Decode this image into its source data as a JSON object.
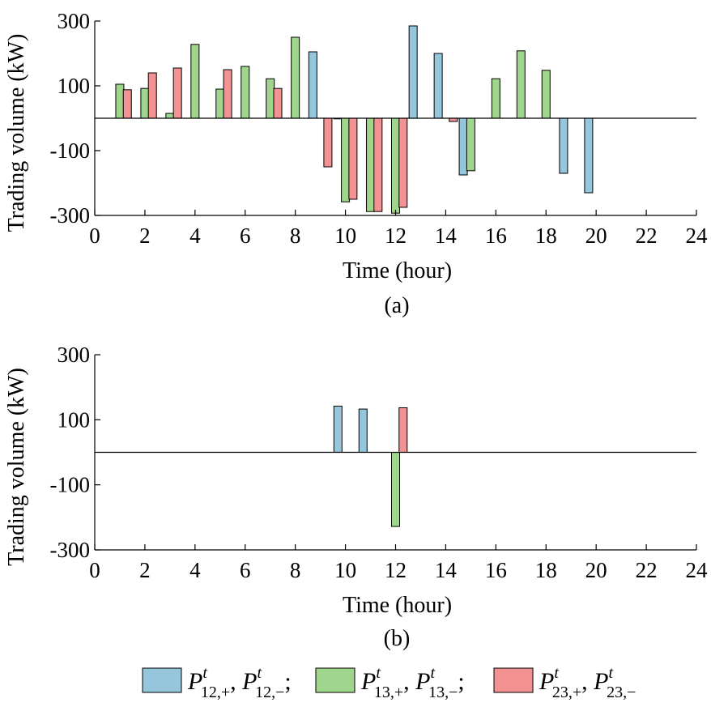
{
  "colors": {
    "series_12": "#95c6dc",
    "series_13": "#9fd58d",
    "series_23": "#f29292"
  },
  "legend": [
    {
      "main1": "P",
      "sup1": "t",
      "sub1": "12,+",
      "sep": ", ",
      "main2": "P",
      "sup2": "t",
      "sub2": "12,−",
      "tail": ";",
      "color_key": "series_12"
    },
    {
      "main1": "P",
      "sup1": "t",
      "sub1": "13,+",
      "sep": ", ",
      "main2": "P",
      "sup2": "t",
      "sub2": "13,−",
      "tail": ";",
      "color_key": "series_13"
    },
    {
      "main1": "P",
      "sup1": "t",
      "sub1": "23,+",
      "sep": ", ",
      "main2": "P",
      "sup2": "t",
      "sub2": "23,−",
      "tail": "",
      "color_key": "series_23"
    }
  ],
  "chart_data": [
    {
      "type": "bar",
      "caption": "(a)",
      "xlabel": "Time (hour)",
      "ylabel": "Trading volume (kW)",
      "xlim": [
        0,
        24
      ],
      "ylim": [
        -300,
        300
      ],
      "xticks": [
        0,
        2,
        4,
        6,
        8,
        10,
        12,
        14,
        16,
        18,
        20,
        22,
        24
      ],
      "yticks": [
        300,
        100,
        -100,
        -300
      ],
      "grid": false,
      "series": [
        {
          "color_key": "series_12",
          "points": [
            [
              8.7,
              205
            ],
            [
              9.7,
              0
            ],
            [
              12.7,
              285
            ],
            [
              13.7,
              200
            ],
            [
              14.7,
              -175
            ],
            [
              18.7,
              -170
            ],
            [
              19.7,
              -230
            ]
          ]
        },
        {
          "color_key": "series_13",
          "points": [
            [
              1,
              105
            ],
            [
              2,
              92
            ],
            [
              3,
              15
            ],
            [
              4,
              228
            ],
            [
              5,
              90
            ],
            [
              6,
              160
            ],
            [
              7,
              122
            ],
            [
              8,
              250
            ],
            [
              10,
              -258
            ],
            [
              11,
              -288
            ],
            [
              12,
              -293
            ],
            [
              15,
              -162
            ],
            [
              16,
              122
            ],
            [
              17,
              208
            ],
            [
              18,
              148
            ]
          ]
        },
        {
          "color_key": "series_23",
          "points": [
            [
              1.3,
              88
            ],
            [
              2.3,
              140
            ],
            [
              3.3,
              155
            ],
            [
              5.3,
              150
            ],
            [
              7.3,
              92
            ],
            [
              9.3,
              -150
            ],
            [
              10.3,
              -250
            ],
            [
              11.3,
              -288
            ],
            [
              12.3,
              -275
            ],
            [
              14.3,
              -10
            ]
          ]
        }
      ]
    },
    {
      "type": "bar",
      "caption": "(b)",
      "xlabel": "Time (hour)",
      "ylabel": "Trading volume (kW)",
      "xlim": [
        0,
        24
      ],
      "ylim": [
        -300,
        300
      ],
      "xticks": [
        0,
        2,
        4,
        6,
        8,
        10,
        12,
        14,
        16,
        18,
        20,
        22,
        24
      ],
      "yticks": [
        300,
        100,
        -100,
        -300
      ],
      "grid": false,
      "series": [
        {
          "color_key": "series_12",
          "points": [
            [
              9.7,
              142
            ],
            [
              10.7,
              133
            ]
          ]
        },
        {
          "color_key": "series_13",
          "points": [
            [
              12,
              -228
            ]
          ]
        },
        {
          "color_key": "series_23",
          "points": [
            [
              12.3,
              137
            ]
          ]
        }
      ]
    }
  ]
}
